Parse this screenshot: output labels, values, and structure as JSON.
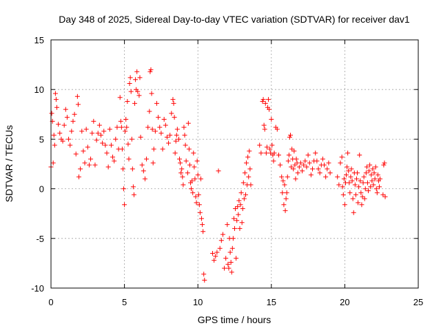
{
  "chart_data": {
    "type": "scatter",
    "marker": "plus",
    "title": "Day 348 of 2025, Sidereal Day-to-day VTEC variation (SDTVAR) for receiver dav1",
    "xlabel": "GPS time / hours",
    "ylabel": "SDTVAR / TECUs",
    "xlim": [
      0,
      25
    ],
    "ylim": [
      -10,
      15
    ],
    "xticks": [
      0,
      5,
      10,
      15,
      20,
      25
    ],
    "yticks": [
      -10,
      -5,
      0,
      5,
      10,
      15
    ],
    "xtick_labels": [
      "0",
      "5",
      "10",
      "15",
      "20",
      "25"
    ],
    "ytick_labels": [
      "-10",
      "-5",
      "0",
      "5",
      "10",
      "15"
    ],
    "grid": true,
    "series": [
      {
        "name": "SDTVAR",
        "color": "#ff0000",
        "points": [
          [
            0.0,
            2.2
          ],
          [
            0.05,
            7.6
          ],
          [
            0.1,
            6.8
          ],
          [
            0.15,
            2.6
          ],
          [
            0.2,
            5.4
          ],
          [
            0.25,
            4.4
          ],
          [
            0.3,
            9.6
          ],
          [
            0.35,
            9.0
          ],
          [
            0.4,
            8.2
          ],
          [
            0.5,
            6.5
          ],
          [
            0.6,
            5.6
          ],
          [
            0.7,
            5.0
          ],
          [
            0.8,
            4.8
          ],
          [
            0.9,
            6.4
          ],
          [
            1.0,
            8.0
          ],
          [
            1.1,
            7.2
          ],
          [
            1.2,
            5.0
          ],
          [
            1.3,
            4.4
          ],
          [
            1.4,
            5.8
          ],
          [
            1.5,
            6.8
          ],
          [
            1.6,
            7.5
          ],
          [
            1.7,
            3.5
          ],
          [
            1.8,
            9.3
          ],
          [
            1.85,
            8.5
          ],
          [
            1.9,
            1.2
          ],
          [
            2.0,
            2.0
          ],
          [
            2.1,
            5.8
          ],
          [
            2.2,
            3.8
          ],
          [
            2.3,
            2.6
          ],
          [
            2.4,
            6.0
          ],
          [
            2.5,
            4.2
          ],
          [
            2.6,
            2.4
          ],
          [
            2.7,
            3.0
          ],
          [
            2.8,
            5.6
          ],
          [
            2.9,
            6.8
          ],
          [
            3.0,
            2.4
          ],
          [
            3.1,
            4.9
          ],
          [
            3.2,
            5.6
          ],
          [
            3.3,
            6.4
          ],
          [
            3.4,
            5.4
          ],
          [
            3.5,
            4.6
          ],
          [
            3.6,
            5.8
          ],
          [
            3.7,
            4.4
          ],
          [
            3.8,
            3.6
          ],
          [
            3.9,
            2.2
          ],
          [
            4.0,
            6.0
          ],
          [
            4.1,
            4.4
          ],
          [
            4.2,
            3.2
          ],
          [
            4.3,
            2.8
          ],
          [
            4.4,
            5.0
          ],
          [
            4.5,
            6.2
          ],
          [
            4.6,
            4.0
          ],
          [
            4.7,
            9.2
          ],
          [
            4.75,
            6.8
          ],
          [
            4.8,
            6.2
          ],
          [
            4.85,
            4.0
          ],
          [
            4.9,
            2.0
          ],
          [
            4.95,
            0.0
          ],
          [
            5.0,
            -1.6
          ],
          [
            5.05,
            5.8
          ],
          [
            5.1,
            7.0
          ],
          [
            5.15,
            6.2
          ],
          [
            5.2,
            8.8
          ],
          [
            5.25,
            4.5
          ],
          [
            5.3,
            3.0
          ],
          [
            5.35,
            10.6
          ],
          [
            5.4,
            11.2
          ],
          [
            5.45,
            9.8
          ],
          [
            5.5,
            5.0
          ],
          [
            5.55,
            2.0
          ],
          [
            5.6,
            0.2
          ],
          [
            5.65,
            -0.6
          ],
          [
            5.7,
            8.6
          ],
          [
            5.75,
            11.0
          ],
          [
            5.8,
            10.0
          ],
          [
            5.85,
            11.8
          ],
          [
            5.9,
            9.8
          ],
          [
            6.0,
            9.4
          ],
          [
            6.05,
            11.2
          ],
          [
            6.1,
            5.2
          ],
          [
            6.2,
            2.4
          ],
          [
            6.3,
            1.8
          ],
          [
            6.4,
            1.0
          ],
          [
            6.5,
            3.0
          ],
          [
            6.6,
            6.2
          ],
          [
            6.7,
            7.8
          ],
          [
            6.75,
            11.8
          ],
          [
            6.8,
            12.0
          ],
          [
            6.85,
            9.6
          ],
          [
            6.9,
            6.0
          ],
          [
            6.95,
            2.6
          ],
          [
            7.0,
            4.0
          ],
          [
            7.1,
            5.8
          ],
          [
            7.2,
            8.6
          ],
          [
            7.3,
            7.2
          ],
          [
            7.4,
            6.2
          ],
          [
            7.5,
            5.6
          ],
          [
            7.6,
            4.0
          ],
          [
            7.7,
            7.0
          ],
          [
            7.8,
            6.4
          ],
          [
            7.9,
            5.2
          ],
          [
            8.0,
            4.6
          ],
          [
            8.1,
            5.4
          ],
          [
            8.2,
            7.6
          ],
          [
            8.3,
            9.0
          ],
          [
            8.35,
            8.6
          ],
          [
            8.4,
            7.2
          ],
          [
            8.45,
            3.6
          ],
          [
            8.5,
            4.8
          ],
          [
            8.55,
            5.4
          ],
          [
            8.6,
            6.0
          ],
          [
            8.7,
            5.0
          ],
          [
            8.75,
            3.0
          ],
          [
            8.8,
            2.6
          ],
          [
            8.85,
            1.6
          ],
          [
            8.9,
            2.0
          ],
          [
            8.95,
            1.2
          ],
          [
            9.0,
            0.4
          ],
          [
            9.05,
            6.2
          ],
          [
            9.1,
            5.4
          ],
          [
            9.15,
            4.4
          ],
          [
            9.2,
            2.8
          ],
          [
            9.3,
            1.6
          ],
          [
            9.35,
            6.6
          ],
          [
            9.4,
            4.0
          ],
          [
            9.45,
            2.4
          ],
          [
            9.5,
            0.6
          ],
          [
            9.55,
            0.0
          ],
          [
            9.6,
            0.8
          ],
          [
            9.65,
            -0.4
          ],
          [
            9.7,
            3.6
          ],
          [
            9.75,
            2.2
          ],
          [
            9.8,
            1.0
          ],
          [
            9.85,
            -0.8
          ],
          [
            9.9,
            -1.4
          ],
          [
            9.95,
            2.8
          ],
          [
            10.0,
            1.4
          ],
          [
            10.05,
            -0.6
          ],
          [
            10.1,
            -1.6
          ],
          [
            10.15,
            -2.4
          ],
          [
            10.2,
            1.0
          ],
          [
            10.25,
            -3.0
          ],
          [
            10.3,
            -3.6
          ],
          [
            10.35,
            -4.3
          ],
          [
            10.4,
            -8.6
          ],
          [
            10.45,
            -9.2
          ],
          [
            11.0,
            -6.5
          ],
          [
            11.1,
            -7.2
          ],
          [
            11.2,
            -6.8
          ],
          [
            11.3,
            -6.4
          ],
          [
            11.4,
            1.8
          ],
          [
            11.5,
            -6.0
          ],
          [
            11.6,
            -5.2
          ],
          [
            11.7,
            -4.6
          ],
          [
            11.8,
            -8.0
          ],
          [
            11.9,
            -7.0
          ],
          [
            12.0,
            -3.6
          ],
          [
            12.05,
            -7.6
          ],
          [
            12.1,
            -8.0
          ],
          [
            12.15,
            -5.0
          ],
          [
            12.2,
            -6.4
          ],
          [
            12.25,
            -7.4
          ],
          [
            12.3,
            -8.4
          ],
          [
            12.35,
            -6.0
          ],
          [
            12.4,
            -5.0
          ],
          [
            12.45,
            -3.0
          ],
          [
            12.5,
            -4.0
          ],
          [
            12.55,
            -2.0
          ],
          [
            12.6,
            -7.0
          ],
          [
            12.65,
            -3.2
          ],
          [
            12.7,
            -1.8
          ],
          [
            12.75,
            -2.6
          ],
          [
            12.8,
            -1.2
          ],
          [
            12.85,
            -4.0
          ],
          [
            12.9,
            -1.6
          ],
          [
            12.95,
            -0.4
          ],
          [
            13.0,
            -3.4
          ],
          [
            13.05,
            -2.0
          ],
          [
            13.1,
            0.6
          ],
          [
            13.15,
            -1.0
          ],
          [
            13.2,
            1.6
          ],
          [
            13.25,
            -0.6
          ],
          [
            13.3,
            2.6
          ],
          [
            13.35,
            0.4
          ],
          [
            13.4,
            3.2
          ],
          [
            13.45,
            1.2
          ],
          [
            13.5,
            3.8
          ],
          [
            13.55,
            2.0
          ],
          [
            13.6,
            0.4
          ],
          [
            14.2,
            4.4
          ],
          [
            14.3,
            3.6
          ],
          [
            14.4,
            8.8
          ],
          [
            14.45,
            9.0
          ],
          [
            14.5,
            6.4
          ],
          [
            14.55,
            6.0
          ],
          [
            14.6,
            8.6
          ],
          [
            14.65,
            3.6
          ],
          [
            14.7,
            4.2
          ],
          [
            14.75,
            8.2
          ],
          [
            14.8,
            9.0
          ],
          [
            14.85,
            8.0
          ],
          [
            14.9,
            4.0
          ],
          [
            14.95,
            3.6
          ],
          [
            15.0,
            7.0
          ],
          [
            15.05,
            4.4
          ],
          [
            15.1,
            3.4
          ],
          [
            15.15,
            2.8
          ],
          [
            15.2,
            3.6
          ],
          [
            15.3,
            6.2
          ],
          [
            15.4,
            6.0
          ],
          [
            15.5,
            3.4
          ],
          [
            15.6,
            2.4
          ],
          [
            15.7,
            1.2
          ],
          [
            15.75,
            -0.4
          ],
          [
            15.8,
            0.8
          ],
          [
            15.85,
            -1.6
          ],
          [
            15.9,
            0.4
          ],
          [
            15.95,
            -2.2
          ],
          [
            16.0,
            -1.0
          ],
          [
            16.05,
            -0.4
          ],
          [
            16.1,
            1.2
          ],
          [
            16.15,
            2.8
          ],
          [
            16.2,
            3.4
          ],
          [
            16.25,
            5.2
          ],
          [
            16.3,
            5.4
          ],
          [
            16.35,
            2.2
          ],
          [
            16.4,
            4.0
          ],
          [
            16.45,
            3.0
          ],
          [
            16.5,
            2.0
          ],
          [
            16.55,
            3.8
          ],
          [
            16.6,
            2.4
          ],
          [
            16.65,
            1.0
          ],
          [
            16.7,
            3.0
          ],
          [
            16.75,
            2.6
          ],
          [
            16.8,
            1.6
          ],
          [
            16.9,
            2.2
          ],
          [
            17.0,
            2.6
          ],
          [
            17.1,
            1.8
          ],
          [
            17.2,
            2.4
          ],
          [
            17.3,
            2.8
          ],
          [
            17.4,
            2.2
          ],
          [
            17.5,
            3.4
          ],
          [
            17.6,
            2.6
          ],
          [
            17.7,
            1.4
          ],
          [
            17.8,
            2.0
          ],
          [
            17.9,
            2.8
          ],
          [
            18.0,
            3.6
          ],
          [
            18.1,
            2.8
          ],
          [
            18.2,
            2.0
          ],
          [
            18.3,
            1.6
          ],
          [
            18.4,
            2.4
          ],
          [
            18.5,
            3.0
          ],
          [
            18.6,
            2.4
          ],
          [
            18.7,
            1.2
          ],
          [
            18.8,
            2.0
          ],
          [
            18.9,
            2.6
          ],
          [
            19.0,
            1.6
          ],
          [
            19.5,
            1.2
          ],
          [
            19.6,
            0.4
          ],
          [
            19.7,
            2.6
          ],
          [
            19.8,
            3.2
          ],
          [
            19.85,
            0.2
          ],
          [
            19.9,
            -0.6
          ],
          [
            19.95,
            1.0
          ],
          [
            20.0,
            -1.6
          ],
          [
            20.05,
            0.6
          ],
          [
            20.1,
            1.4
          ],
          [
            20.15,
            2.2
          ],
          [
            20.2,
            3.6
          ],
          [
            20.25,
            1.8
          ],
          [
            20.3,
            0.6
          ],
          [
            20.35,
            -0.4
          ],
          [
            20.4,
            1.2
          ],
          [
            20.45,
            2.0
          ],
          [
            20.5,
            0.8
          ],
          [
            20.55,
            -1.0
          ],
          [
            20.6,
            -2.4
          ],
          [
            20.65,
            1.6
          ],
          [
            20.7,
            0.4
          ],
          [
            20.75,
            -0.6
          ],
          [
            20.8,
            1.0
          ],
          [
            20.85,
            1.6
          ],
          [
            20.9,
            -1.4
          ],
          [
            20.95,
            0.2
          ],
          [
            21.0,
            3.4
          ],
          [
            21.05,
            0.8
          ],
          [
            21.1,
            -0.4
          ],
          [
            21.15,
            -1.6
          ],
          [
            21.2,
            -0.8
          ],
          [
            21.25,
            0.6
          ],
          [
            21.3,
            1.2
          ],
          [
            21.35,
            -1.0
          ],
          [
            21.4,
            0.0
          ],
          [
            21.45,
            1.6
          ],
          [
            21.5,
            2.2
          ],
          [
            21.55,
            0.6
          ],
          [
            21.6,
            -0.2
          ],
          [
            21.65,
            1.8
          ],
          [
            21.7,
            2.4
          ],
          [
            21.75,
            0.2
          ],
          [
            21.8,
            1.4
          ],
          [
            21.85,
            0.8
          ],
          [
            21.9,
            2.0
          ],
          [
            21.95,
            0.4
          ],
          [
            22.0,
            1.6
          ],
          [
            22.05,
            1.0
          ],
          [
            22.1,
            2.2
          ],
          [
            22.15,
            0.0
          ],
          [
            22.2,
            -0.4
          ],
          [
            22.25,
            1.4
          ],
          [
            22.3,
            0.8
          ],
          [
            22.35,
            0.2
          ],
          [
            22.4,
            1.0
          ],
          [
            22.6,
            -0.6
          ],
          [
            22.65,
            2.4
          ],
          [
            22.7,
            2.6
          ],
          [
            22.75,
            -0.8
          ]
        ]
      }
    ]
  }
}
